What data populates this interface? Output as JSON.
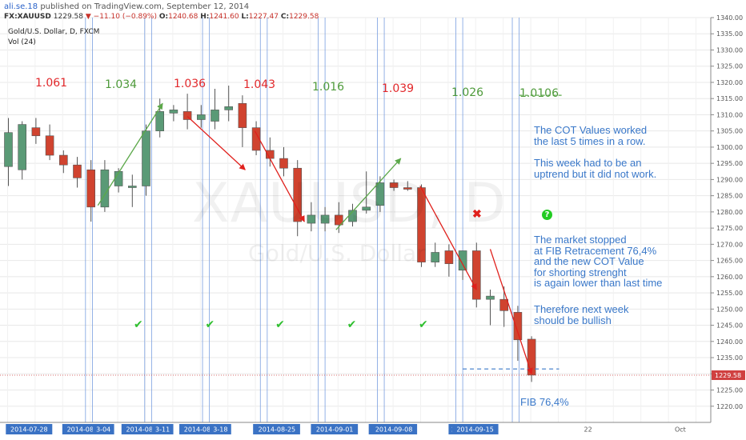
{
  "header": {
    "author": "ali.se.18",
    "published": "published on TradingView.com, September 12, 2014",
    "symbol": "FX:XAUUSD",
    "last": "1229.58",
    "change": "−11.10 (−0.89%)",
    "open_label": "O:",
    "open": "1240.68",
    "high_label": "H:",
    "high": "1241.60",
    "low_label": "L:",
    "low": "1227.47",
    "close_label": "C:",
    "close": "1229.58"
  },
  "legend": {
    "title": "Gold/U.S. Dollar, D, FXCM",
    "volume": "Vol (24)"
  },
  "watermark": {
    "symbol": "XAUUSD, D",
    "name": "Gold/U.S. Dollar"
  },
  "cot_values": [
    {
      "text": "1.061",
      "color": "red"
    },
    {
      "text": "1.034",
      "color": "green"
    },
    {
      "text": "1.036",
      "color": "red"
    },
    {
      "text": "1.043",
      "color": "red"
    },
    {
      "text": "1.016",
      "color": "green"
    },
    {
      "text": "1.039",
      "color": "red"
    },
    {
      "text": "1.026",
      "color": "green"
    },
    {
      "text": "1.0106",
      "color": "green"
    }
  ],
  "notes": {
    "p1": [
      "The COT Values worked",
      "the last 5 times in a row."
    ],
    "p2": [
      "This week had to be an",
      "uptrend but it did not work."
    ],
    "p3": [
      "The market stopped",
      "at FIB Retracement 76,4%",
      "and the new COT Value",
      "for shorting strenght",
      "is again lower than last time"
    ],
    "p4": [
      "Therefore next week",
      "should be bullish"
    ]
  },
  "fib_label": "FIB 76,4%",
  "marks": {
    "cross": "✖",
    "question": "?",
    "check": "✔"
  },
  "colors": {
    "up": "#5a9a76",
    "down": "#d0432f",
    "vline": "#7a9fe0",
    "grid": "#e8e8e8",
    "arrow_red": "#e0201c",
    "arrow_green": "#5ca84a",
    "price_line": "#d04040",
    "fib_line": "#3a78c9"
  },
  "chart_data": {
    "type": "candlestick",
    "yaxis": {
      "min": 1215,
      "max": 1340,
      "step": 5,
      "last_price": "1229.58"
    },
    "xaxis_labels": [
      "2014-07-28",
      "2014-08-01",
      "3-04",
      "2014-08-08",
      "3-11",
      "2014-08-15",
      "3-18",
      "201",
      "2014-08-25",
      "201",
      "2014-09-01",
      "201",
      "2014-09-08",
      "201",
      "2014-09-15",
      "22",
      "Oct"
    ],
    "candles": [
      {
        "open": 1294.0,
        "high": 1309.0,
        "low": 1288.0,
        "close": 1304.5
      },
      {
        "open": 1293.0,
        "high": 1308.0,
        "low": 1290.0,
        "close": 1307.0
      },
      {
        "open": 1306.0,
        "high": 1309.0,
        "low": 1301.0,
        "close": 1303.5
      },
      {
        "open": 1303.5,
        "high": 1307.0,
        "low": 1296.0,
        "close": 1297.5
      },
      {
        "open": 1297.5,
        "high": 1299.0,
        "low": 1292.0,
        "close": 1294.5
      },
      {
        "open": 1294.5,
        "high": 1297.0,
        "low": 1287.5,
        "close": 1290.5
      },
      {
        "open": 1293.0,
        "high": 1296.0,
        "low": 1277.0,
        "close": 1281.5
      },
      {
        "open": 1281.5,
        "high": 1296.0,
        "low": 1280.0,
        "close": 1293.0
      },
      {
        "open": 1288.0,
        "high": 1293.5,
        "low": 1286.0,
        "close": 1292.5
      },
      {
        "open": 1287.5,
        "high": 1291.5,
        "low": 1281.5,
        "close": 1288.0
      },
      {
        "open": 1288.0,
        "high": 1307.0,
        "low": 1285.0,
        "close": 1305.0
      },
      {
        "open": 1305.0,
        "high": 1315.0,
        "low": 1303.0,
        "close": 1311.0
      },
      {
        "open": 1310.5,
        "high": 1313.0,
        "low": 1308.0,
        "close": 1311.5
      },
      {
        "open": 1311.0,
        "high": 1316.5,
        "low": 1305.5,
        "close": 1308.5
      },
      {
        "open": 1308.5,
        "high": 1313.0,
        "low": 1306.0,
        "close": 1310.0
      },
      {
        "open": 1308.0,
        "high": 1318.0,
        "low": 1305.5,
        "close": 1311.5
      },
      {
        "open": 1311.5,
        "high": 1319.0,
        "low": 1308.0,
        "close": 1312.5
      },
      {
        "open": 1313.5,
        "high": 1316.0,
        "low": 1300.0,
        "close": 1306.0
      },
      {
        "open": 1306.0,
        "high": 1308.0,
        "low": 1297.5,
        "close": 1299.0
      },
      {
        "open": 1299.0,
        "high": 1303.0,
        "low": 1294.0,
        "close": 1296.5
      },
      {
        "open": 1296.5,
        "high": 1300.0,
        "low": 1291.0,
        "close": 1293.5
      },
      {
        "open": 1293.5,
        "high": 1296.0,
        "low": 1272.5,
        "close": 1277.0
      },
      {
        "open": 1276.5,
        "high": 1283.0,
        "low": 1274.0,
        "close": 1279.0
      },
      {
        "open": 1276.5,
        "high": 1281.5,
        "low": 1274.0,
        "close": 1279.0
      },
      {
        "open": 1279.0,
        "high": 1283.0,
        "low": 1273.5,
        "close": 1276.0
      },
      {
        "open": 1277.0,
        "high": 1282.5,
        "low": 1275.5,
        "close": 1280.5
      },
      {
        "open": 1280.5,
        "high": 1292.5,
        "low": 1279.5,
        "close": 1281.5
      },
      {
        "open": 1282.0,
        "high": 1291.0,
        "low": 1280.0,
        "close": 1289.0
      },
      {
        "open": 1289.0,
        "high": 1290.0,
        "low": 1286.5,
        "close": 1287.5
      },
      {
        "open": 1287.5,
        "high": 1289.5,
        "low": 1286.5,
        "close": 1287.0
      },
      {
        "open": 1287.5,
        "high": 1288.5,
        "low": 1263.0,
        "close": 1264.5
      },
      {
        "open": 1264.5,
        "high": 1270.5,
        "low": 1263.0,
        "close": 1267.5
      },
      {
        "open": 1268.0,
        "high": 1270.0,
        "low": 1260.0,
        "close": 1264.0
      },
      {
        "open": 1262.0,
        "high": 1268.0,
        "low": 1259.0,
        "close": 1268.0
      },
      {
        "open": 1268.0,
        "high": 1270.5,
        "low": 1250.5,
        "close": 1253.0
      },
      {
        "open": 1253.0,
        "high": 1256.0,
        "low": 1245.0,
        "close": 1254.0
      },
      {
        "open": 1253.0,
        "high": 1257.0,
        "low": 1244.5,
        "close": 1249.5
      },
      {
        "open": 1249.0,
        "high": 1251.0,
        "low": 1234.0,
        "close": 1240.5
      },
      {
        "open": 1240.7,
        "high": 1241.6,
        "low": 1227.5,
        "close": 1229.6
      }
    ],
    "up_arrows": [
      {
        "from": [
          6.5,
          1282.0
        ],
        "to": [
          11.2,
          1313.5
        ]
      },
      {
        "from": [
          23.8,
          1274.5
        ],
        "to": [
          28.5,
          1296.5
        ]
      }
    ],
    "down_arrows": [
      {
        "from": [
          13.0,
          1309.5
        ],
        "to": [
          17.2,
          1293.0
        ]
      },
      {
        "from": [
          17.9,
          1305.0
        ],
        "to": [
          21.5,
          1277.0
        ]
      },
      {
        "from": [
          29.9,
          1288.0
        ],
        "to": [
          34.0,
          1256.0
        ]
      },
      {
        "from": [
          35.0,
          1268.5
        ],
        "to": [
          38.0,
          1230.0
        ]
      }
    ],
    "fib_level": 1231.5,
    "cot_target_level": 1316.0,
    "vertical_lines": [
      5.6,
      6.1,
      9.9,
      10.4,
      14.1,
      14.6,
      18.3,
      18.8,
      22.5,
      23.0,
      26.8,
      27.3,
      32.5,
      33.0,
      36.6,
      37.1
    ]
  }
}
